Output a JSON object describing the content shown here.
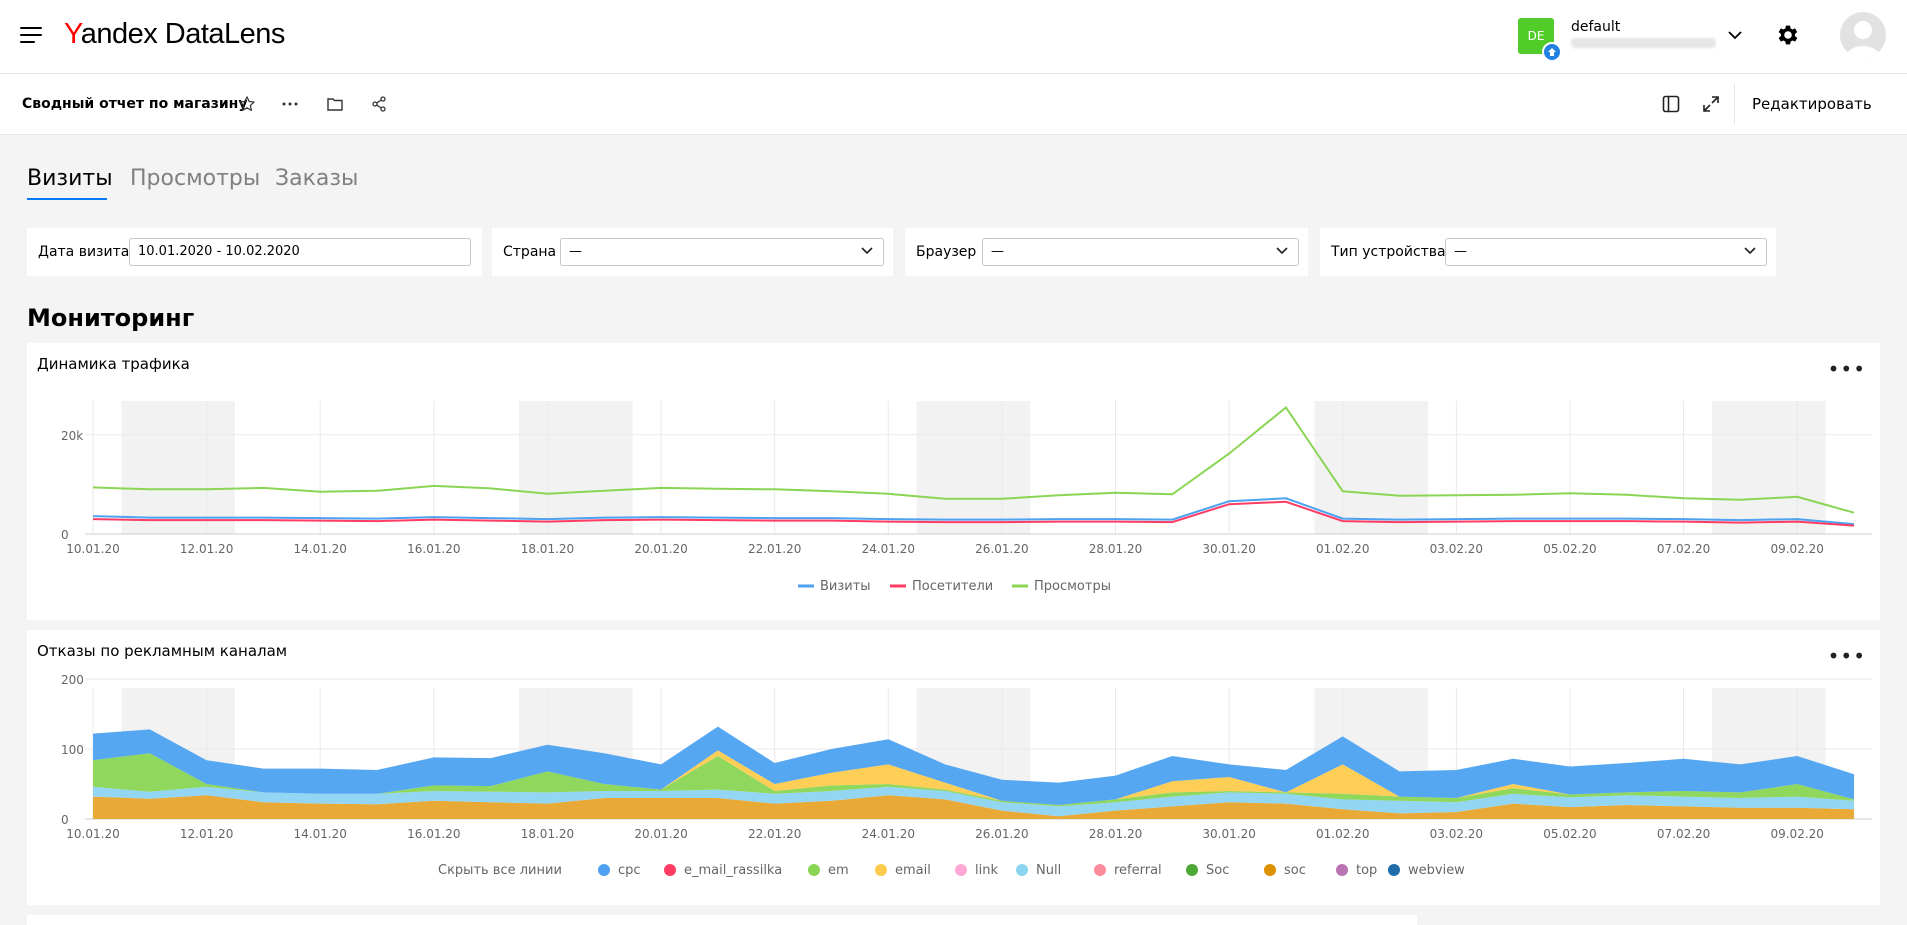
{
  "header": {
    "logo_yandex": "Yandex",
    "logo_product": "DataLens",
    "user_avatar_initials": "DE",
    "user_name": "default",
    "icons": [
      "menu-icon",
      "chevron-down-icon",
      "gear-icon",
      "user-avatar-icon"
    ]
  },
  "toolbar": {
    "dashboard_title": "Сводный отчет по магазину",
    "edit_label": "Редактировать",
    "icons": [
      "star-icon",
      "more-icon",
      "folder-icon",
      "share-icon",
      "sidebar-icon",
      "fullscreen-icon"
    ]
  },
  "tabs": [
    {
      "label": "Визиты",
      "active": true
    },
    {
      "label": "Просмотры",
      "active": false
    },
    {
      "label": "Заказы",
      "active": false
    }
  ],
  "filters": {
    "date": {
      "label": "Дата визита",
      "value": "10.01.2020 - 10.02.2020"
    },
    "country": {
      "label": "Страна",
      "value": "—"
    },
    "browser": {
      "label": "Браузер",
      "value": "—"
    },
    "device": {
      "label": "Тип устройства",
      "value": "—"
    }
  },
  "section_title": "Мониторинг",
  "widgets": {
    "traffic": {
      "title": "Динамика трафика",
      "menu": "•••"
    },
    "bounces": {
      "title": "Отказы по рекламным каналам",
      "menu": "•••",
      "hide_all": "Скрыть все линии"
    }
  },
  "chart_data": [
    {
      "type": "line",
      "title": "Динамика трафика",
      "x": [
        "10.01.20",
        "11.01.20",
        "12.01.20",
        "13.01.20",
        "14.01.20",
        "15.01.20",
        "16.01.20",
        "17.01.20",
        "18.01.20",
        "19.01.20",
        "20.01.20",
        "21.01.20",
        "22.01.20",
        "23.01.20",
        "24.01.20",
        "25.01.20",
        "26.01.20",
        "27.01.20",
        "28.01.20",
        "29.01.20",
        "30.01.20",
        "31.01.20",
        "01.02.20",
        "02.02.20",
        "03.02.20",
        "04.02.20",
        "05.02.20",
        "06.02.20",
        "07.02.20",
        "08.02.20",
        "09.02.20",
        "10.02.20"
      ],
      "tick_labels": [
        "10.01.20",
        "12.01.20",
        "14.01.20",
        "16.01.20",
        "18.01.20",
        "20.01.20",
        "22.01.20",
        "24.01.20",
        "26.01.20",
        "28.01.20",
        "30.01.20",
        "01.02.20",
        "03.02.20",
        "05.02.20",
        "07.02.20",
        "09.02.20"
      ],
      "y_ticks": [
        "0",
        "20k"
      ],
      "ylim": [
        0,
        26000
      ],
      "weekend_bands": [
        [
          "11.01.20",
          "12.01.20"
        ],
        [
          "18.01.20",
          "19.01.20"
        ],
        [
          "25.01.20",
          "26.01.20"
        ],
        [
          "01.02.20",
          "02.02.20"
        ],
        [
          "08.02.20",
          "09.02.20"
        ]
      ],
      "series": [
        {
          "name": "Визиты",
          "color": "#4da2f1",
          "values": [
            3600,
            3300,
            3300,
            3300,
            3200,
            3100,
            3400,
            3200,
            3000,
            3300,
            3400,
            3300,
            3200,
            3200,
            3000,
            2900,
            2900,
            3000,
            3000,
            2900,
            6600,
            7200,
            3100,
            2900,
            3000,
            3100,
            3100,
            3100,
            3000,
            2800,
            3000,
            2000
          ]
        },
        {
          "name": "Посетители",
          "color": "#ff3d64",
          "values": [
            3000,
            2800,
            2800,
            2800,
            2700,
            2600,
            2900,
            2700,
            2500,
            2800,
            2900,
            2800,
            2700,
            2700,
            2500,
            2400,
            2400,
            2500,
            2500,
            2400,
            6000,
            6500,
            2600,
            2400,
            2500,
            2600,
            2600,
            2600,
            2500,
            2300,
            2500,
            1700
          ]
        },
        {
          "name": "Просмотры",
          "color": "#8ad554",
          "values": [
            9400,
            9000,
            9000,
            9300,
            8500,
            8700,
            9700,
            9200,
            8100,
            8700,
            9300,
            9100,
            9000,
            8600,
            8100,
            7100,
            7100,
            7800,
            8300,
            8000,
            16200,
            25500,
            8600,
            7700,
            7800,
            7900,
            8200,
            7900,
            7200,
            6900,
            7500,
            4300
          ]
        }
      ]
    },
    {
      "type": "area",
      "title": "Отказы по рекламным каналам",
      "x": [
        "10.01.20",
        "11.01.20",
        "12.01.20",
        "13.01.20",
        "14.01.20",
        "15.01.20",
        "16.01.20",
        "17.01.20",
        "18.01.20",
        "19.01.20",
        "20.01.20",
        "21.01.20",
        "22.01.20",
        "23.01.20",
        "24.01.20",
        "25.01.20",
        "26.01.20",
        "27.01.20",
        "28.01.20",
        "29.01.20",
        "30.01.20",
        "31.01.20",
        "01.02.20",
        "02.02.20",
        "03.02.20",
        "04.02.20",
        "05.02.20",
        "06.02.20",
        "07.02.20",
        "08.02.20",
        "09.02.20",
        "10.02.20"
      ],
      "tick_labels": [
        "10.01.20",
        "12.01.20",
        "14.01.20",
        "16.01.20",
        "18.01.20",
        "20.01.20",
        "22.01.20",
        "24.01.20",
        "26.01.20",
        "28.01.20",
        "30.01.20",
        "01.02.20",
        "03.02.20",
        "05.02.20",
        "07.02.20",
        "09.02.20"
      ],
      "y_ticks": [
        "0",
        "100",
        "200"
      ],
      "ylim": [
        0,
        210
      ],
      "weekend_bands": [
        [
          "11.01.20",
          "12.01.20"
        ],
        [
          "18.01.20",
          "19.01.20"
        ],
        [
          "25.01.20",
          "26.01.20"
        ],
        [
          "01.02.20",
          "02.02.20"
        ],
        [
          "08.02.20",
          "09.02.20"
        ]
      ],
      "series": [
        {
          "name": "soc",
          "color": "#e8a42b",
          "values": [
            32,
            29,
            34,
            24,
            22,
            21,
            26,
            24,
            22,
            30,
            30,
            30,
            22,
            26,
            34,
            28,
            12,
            4,
            12,
            18,
            24,
            22,
            14,
            8,
            10,
            22,
            17,
            20,
            18,
            16,
            16,
            14
          ]
        },
        {
          "name": "Null",
          "color": "#8dd4f2",
          "values": [
            14,
            10,
            12,
            14,
            14,
            15,
            14,
            15,
            16,
            10,
            10,
            12,
            14,
            14,
            12,
            12,
            12,
            14,
            12,
            14,
            14,
            14,
            14,
            18,
            14,
            14,
            14,
            14,
            14,
            14,
            16,
            12
          ]
        },
        {
          "name": "em",
          "color": "#8ad554",
          "values": [
            38,
            55,
            4,
            0,
            0,
            0,
            8,
            8,
            30,
            10,
            2,
            48,
            4,
            8,
            4,
            2,
            2,
            2,
            4,
            6,
            2,
            2,
            8,
            6,
            6,
            8,
            4,
            4,
            8,
            8,
            18,
            2
          ]
        },
        {
          "name": "email",
          "color": "#ffcb4d",
          "values": [
            0,
            0,
            0,
            0,
            0,
            0,
            0,
            0,
            0,
            0,
            0,
            8,
            10,
            18,
            28,
            10,
            0,
            0,
            0,
            16,
            20,
            0,
            42,
            0,
            0,
            6,
            0,
            0,
            0,
            0,
            0,
            0
          ]
        },
        {
          "name": "cpc",
          "color": "#4da2f1",
          "values": [
            38,
            34,
            34,
            34,
            36,
            34,
            40,
            40,
            38,
            44,
            36,
            34,
            30,
            34,
            36,
            26,
            30,
            32,
            34,
            36,
            18,
            32,
            40,
            36,
            40,
            36,
            40,
            42,
            46,
            40,
            40,
            36
          ]
        }
      ],
      "legend": [
        "cpc",
        "e_mail_rassilka",
        "em",
        "email",
        "link",
        "Null",
        "referral",
        "Soc",
        "soc",
        "top",
        "webview"
      ],
      "legend_colors": [
        "#4da2f1",
        "#ff3d64",
        "#8ad554",
        "#ffcb4d",
        "#ffa8d5",
        "#8dd4f2",
        "#fc8b9b",
        "#4ea838",
        "#db9100",
        "#ba74b3",
        "#1f6cab"
      ]
    }
  ]
}
